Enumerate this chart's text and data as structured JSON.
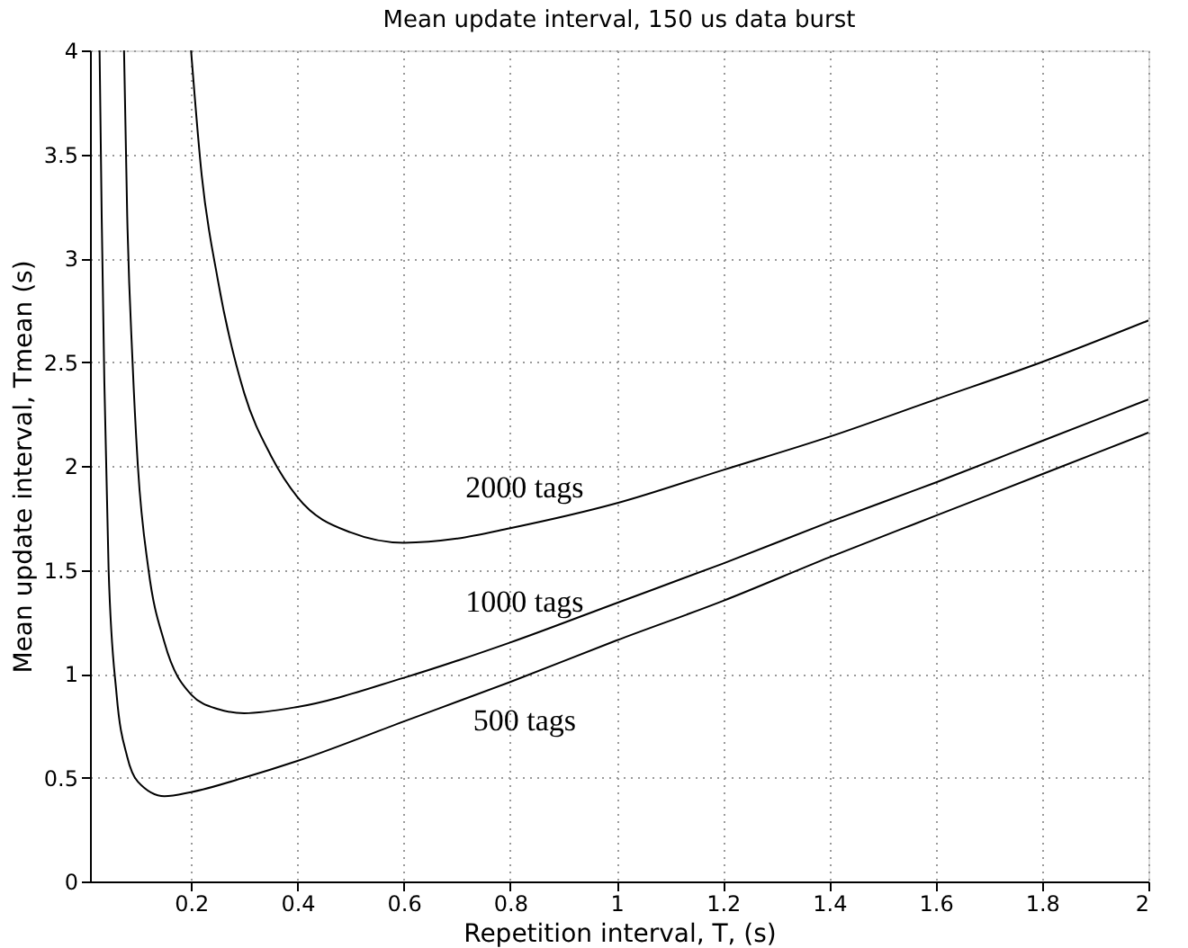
{
  "chart_data": {
    "type": "line",
    "title": "Mean update interval, 150 us data burst",
    "xlabel": "Repetition interval, T, (s)",
    "ylabel": "Mean update interval, Tmean (s)",
    "xlim": [
      0.01,
      2
    ],
    "ylim": [
      0,
      4
    ],
    "xticks": [
      0.2,
      0.4,
      0.6,
      0.8,
      1,
      1.2,
      1.4,
      1.6,
      1.8,
      2
    ],
    "yticks": [
      0,
      0.5,
      1,
      1.5,
      2,
      2.5,
      3,
      3.5,
      4
    ],
    "grid": true,
    "legend": false,
    "marker": "none",
    "line_style": "solid",
    "series": [
      {
        "name": "500 tags",
        "color": "#000000",
        "x": [
          0.028,
          0.032,
          0.037,
          0.045,
          0.06,
          0.08,
          0.1,
          0.15,
          0.2,
          0.3,
          0.4,
          0.6,
          0.8,
          1.0,
          1.2,
          1.4,
          1.6,
          1.8,
          2.0
        ],
        "values": [
          4,
          3.2,
          2.4,
          1.5,
          0.9,
          0.6,
          0.48,
          0.41,
          0.43,
          0.5,
          0.58,
          0.77,
          0.96,
          1.16,
          1.35,
          1.56,
          1.76,
          1.96,
          2.16
        ]
      },
      {
        "name": "1000 tags",
        "color": "#000000",
        "x": [
          0.074,
          0.08,
          0.09,
          0.1,
          0.12,
          0.15,
          0.2,
          0.25,
          0.3,
          0.4,
          0.6,
          0.8,
          1.0,
          1.2,
          1.4,
          1.6,
          1.8,
          2.0
        ],
        "values": [
          4,
          3.2,
          2.5,
          2.0,
          1.5,
          1.15,
          0.9,
          0.83,
          0.81,
          0.84,
          0.98,
          1.15,
          1.34,
          1.53,
          1.73,
          1.92,
          2.12,
          2.32
        ]
      },
      {
        "name": "2000 tags",
        "color": "#000000",
        "x": [
          0.2,
          0.22,
          0.25,
          0.3,
          0.35,
          0.4,
          0.5,
          0.6,
          0.7,
          0.8,
          1.0,
          1.2,
          1.4,
          1.6,
          1.8,
          2.0
        ],
        "values": [
          4,
          3.4,
          2.9,
          2.35,
          2.05,
          1.85,
          1.68,
          1.63,
          1.65,
          1.7,
          1.82,
          1.98,
          2.14,
          2.32,
          2.5,
          2.7
        ]
      }
    ]
  }
}
